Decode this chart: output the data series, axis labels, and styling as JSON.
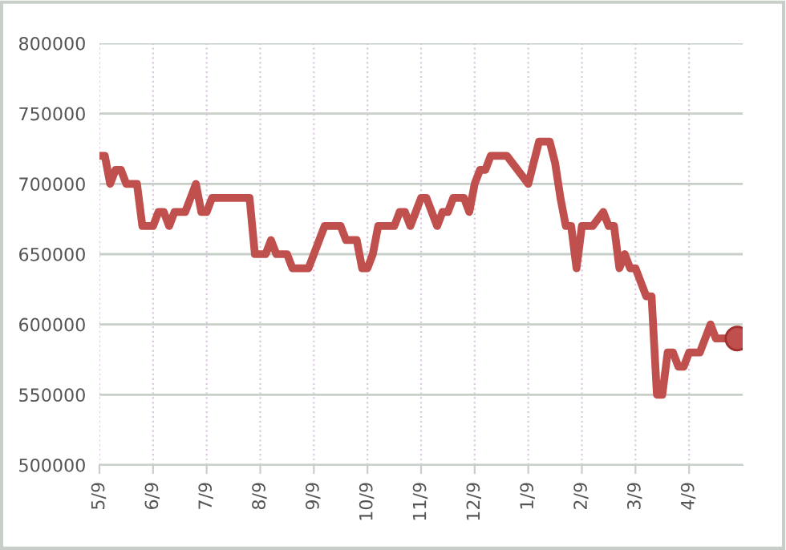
{
  "chart_data": {
    "type": "line",
    "ylim": [
      500000,
      800000
    ],
    "categories": [
      "5/9",
      null,
      null,
      null,
      null,
      null,
      null,
      null,
      null,
      null,
      "6/9",
      null,
      null,
      null,
      null,
      null,
      null,
      null,
      null,
      null,
      "7/9",
      null,
      null,
      null,
      null,
      null,
      null,
      null,
      null,
      null,
      "8/9",
      null,
      null,
      null,
      null,
      null,
      null,
      null,
      null,
      null,
      "9/9",
      null,
      null,
      null,
      null,
      null,
      null,
      null,
      null,
      null,
      "10/9",
      null,
      null,
      null,
      null,
      null,
      null,
      null,
      null,
      null,
      "11/9",
      null,
      null,
      null,
      null,
      null,
      null,
      null,
      null,
      null,
      "12/9",
      null,
      null,
      null,
      null,
      null,
      null,
      null,
      null,
      null,
      "1/9",
      null,
      null,
      null,
      null,
      null,
      null,
      null,
      null,
      null,
      "2/9",
      null,
      null,
      null,
      null,
      null,
      null,
      null,
      null,
      null,
      "3/9",
      null,
      null,
      null,
      null,
      null,
      null,
      null,
      null,
      null,
      "4/9",
      null,
      null,
      null,
      null,
      null,
      null,
      null,
      null,
      null
    ],
    "yticks": [
      500000,
      550000,
      600000,
      650000,
      700000,
      750000,
      800000
    ],
    "grid": true,
    "legend": false,
    "line_style": "solid",
    "marker": "none",
    "series": [
      {
        "color": "#c0504d",
        "values": [
          720000,
          720000,
          700000,
          710000,
          710000,
          700000,
          700000,
          700000,
          670000,
          670000,
          670000,
          680000,
          680000,
          670000,
          680000,
          680000,
          680000,
          690000,
          700000,
          680000,
          680000,
          690000,
          690000,
          690000,
          690000,
          690000,
          690000,
          690000,
          690000,
          650000,
          650000,
          650000,
          660000,
          650000,
          650000,
          650000,
          640000,
          640000,
          640000,
          640000,
          650000,
          660000,
          670000,
          670000,
          670000,
          670000,
          660000,
          660000,
          660000,
          640000,
          640000,
          650000,
          670000,
          670000,
          670000,
          670000,
          680000,
          680000,
          670000,
          680000,
          690000,
          690000,
          680000,
          670000,
          680000,
          680000,
          690000,
          690000,
          690000,
          680000,
          700000,
          710000,
          710000,
          720000,
          720000,
          720000,
          720000,
          715000,
          710000,
          705000,
          700000,
          715000,
          730000,
          730000,
          730000,
          715000,
          690000,
          670000,
          670000,
          640000,
          670000,
          670000,
          670000,
          675000,
          680000,
          670000,
          670000,
          640000,
          650000,
          640000,
          640000,
          630000,
          620000,
          620000,
          550000,
          550000,
          580000,
          580000,
          570000,
          570000,
          580000,
          580000,
          580000,
          590000,
          600000,
          590000,
          590000,
          590000,
          590000,
          590000
        ]
      },
      {
        "type": "scatter",
        "color": "#c0504d",
        "marker": "circle",
        "values": [
          null,
          null,
          null,
          null,
          null,
          null,
          null,
          null,
          null,
          null,
          null,
          null,
          null,
          null,
          null,
          null,
          null,
          null,
          null,
          null,
          null,
          null,
          null,
          null,
          null,
          null,
          null,
          null,
          null,
          null,
          null,
          null,
          null,
          null,
          null,
          null,
          null,
          null,
          null,
          null,
          null,
          null,
          null,
          null,
          null,
          null,
          null,
          null,
          null,
          null,
          null,
          null,
          null,
          null,
          null,
          null,
          null,
          null,
          null,
          null,
          null,
          null,
          null,
          null,
          null,
          null,
          null,
          null,
          null,
          null,
          null,
          null,
          null,
          null,
          null,
          null,
          null,
          null,
          null,
          null,
          null,
          null,
          null,
          null,
          null,
          null,
          null,
          null,
          null,
          null,
          null,
          null,
          null,
          null,
          null,
          null,
          null,
          null,
          null,
          null,
          null,
          null,
          null,
          null,
          null,
          null,
          null,
          null,
          null,
          null,
          null,
          null,
          null,
          null,
          null,
          null,
          null,
          null,
          null,
          590000
        ]
      }
    ]
  }
}
